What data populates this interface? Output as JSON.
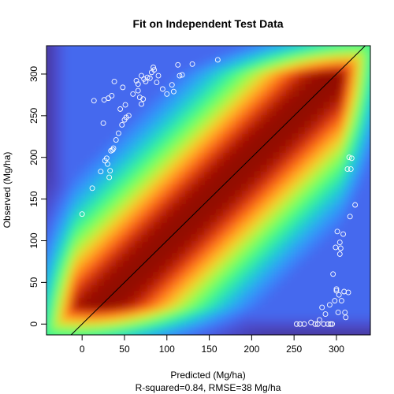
{
  "chart_data": {
    "type": "scatter",
    "title": "Fit on Independent Test Data",
    "xlabel": "Predicted (Mg/ha)",
    "ylabel": "Observed (Mg/ha)",
    "subtitle": "R-squared=0.84, RMSE=38 Mg/ha",
    "xlim": [
      -42,
      340
    ],
    "ylim": [
      -13,
      334
    ],
    "x_ticks": [
      0,
      50,
      100,
      150,
      200,
      250,
      300
    ],
    "y_ticks": [
      0,
      50,
      100,
      150,
      200,
      250,
      300
    ],
    "background": "density heatmap (turbo colormap) concentrated along the 1:1 line",
    "reference_line": {
      "label": "1:1",
      "slope": 1,
      "intercept": 0
    },
    "colors": {
      "points": "#ffffff",
      "line": "#000000",
      "density_low": "#30123b",
      "density_mid": "#1ae4b6",
      "density_high": "#7a0403"
    },
    "points": [
      [
        0,
        132
      ],
      [
        12,
        163
      ],
      [
        14,
        268
      ],
      [
        22,
        183
      ],
      [
        25,
        241
      ],
      [
        26,
        269
      ],
      [
        27,
        196
      ],
      [
        29,
        199
      ],
      [
        30,
        192
      ],
      [
        31,
        271
      ],
      [
        32,
        176
      ],
      [
        33,
        184
      ],
      [
        34,
        208
      ],
      [
        35,
        274
      ],
      [
        36,
        209
      ],
      [
        37,
        211
      ],
      [
        38,
        291
      ],
      [
        40,
        221
      ],
      [
        43,
        229
      ],
      [
        45,
        258
      ],
      [
        47,
        239
      ],
      [
        48,
        284
      ],
      [
        50,
        245
      ],
      [
        51,
        263
      ],
      [
        52,
        248
      ],
      [
        55,
        250
      ],
      [
        60,
        276
      ],
      [
        64,
        292
      ],
      [
        66,
        288
      ],
      [
        66,
        280
      ],
      [
        68,
        272
      ],
      [
        70,
        264
      ],
      [
        70,
        298
      ],
      [
        72,
        270
      ],
      [
        73,
        294
      ],
      [
        75,
        291
      ],
      [
        77,
        296
      ],
      [
        80,
        295
      ],
      [
        82,
        302
      ],
      [
        84,
        308
      ],
      [
        85,
        305
      ],
      [
        88,
        290
      ],
      [
        90,
        298
      ],
      [
        95,
        282
      ],
      [
        100,
        276
      ],
      [
        106,
        287
      ],
      [
        108,
        279
      ],
      [
        113,
        311
      ],
      [
        115,
        298
      ],
      [
        118,
        299
      ],
      [
        130,
        312
      ],
      [
        160,
        317
      ],
      [
        253,
        0
      ],
      [
        257,
        0
      ],
      [
        262,
        0
      ],
      [
        270,
        2
      ],
      [
        275,
        0
      ],
      [
        278,
        0
      ],
      [
        280,
        5
      ],
      [
        283,
        20
      ],
      [
        285,
        0
      ],
      [
        287,
        12
      ],
      [
        290,
        0
      ],
      [
        292,
        23
      ],
      [
        293,
        0
      ],
      [
        295,
        0
      ],
      [
        296,
        60
      ],
      [
        298,
        28
      ],
      [
        299,
        92
      ],
      [
        300,
        40
      ],
      [
        300,
        42
      ],
      [
        301,
        111
      ],
      [
        302,
        14
      ],
      [
        303,
        35
      ],
      [
        304,
        84
      ],
      [
        304,
        98
      ],
      [
        305,
        91
      ],
      [
        306,
        28
      ],
      [
        308,
        108
      ],
      [
        309,
        39
      ],
      [
        310,
        14
      ],
      [
        311,
        8
      ],
      [
        313,
        186
      ],
      [
        314,
        38
      ],
      [
        315,
        200
      ],
      [
        316,
        129
      ],
      [
        317,
        186
      ],
      [
        318,
        199
      ],
      [
        322,
        143
      ]
    ]
  }
}
